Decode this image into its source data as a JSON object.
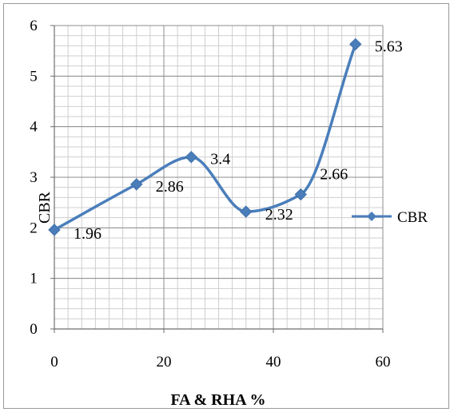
{
  "chart_data": {
    "type": "line",
    "xlabel": "FA & RHA %",
    "ylabel": "CBR",
    "xlim": [
      0,
      60
    ],
    "ylim": [
      0,
      6
    ],
    "xticks": [
      0,
      20,
      40,
      60
    ],
    "yticks": [
      0,
      1,
      2,
      3,
      4,
      5,
      6
    ],
    "x_minor_step": 2.5,
    "y_minor_step": 0.2,
    "grid": true,
    "legend_position": "right",
    "smooth": true,
    "series": [
      {
        "name": "CBR",
        "color": "#4a7ebb",
        "marker": "diamond",
        "x": [
          0,
          15,
          25,
          35,
          45,
          55
        ],
        "y": [
          1.96,
          2.86,
          3.4,
          2.32,
          2.66,
          5.63
        ],
        "labels": [
          "1.96",
          "2.86",
          "3.4",
          "2.32",
          "2.66",
          "5.63"
        ]
      }
    ]
  }
}
